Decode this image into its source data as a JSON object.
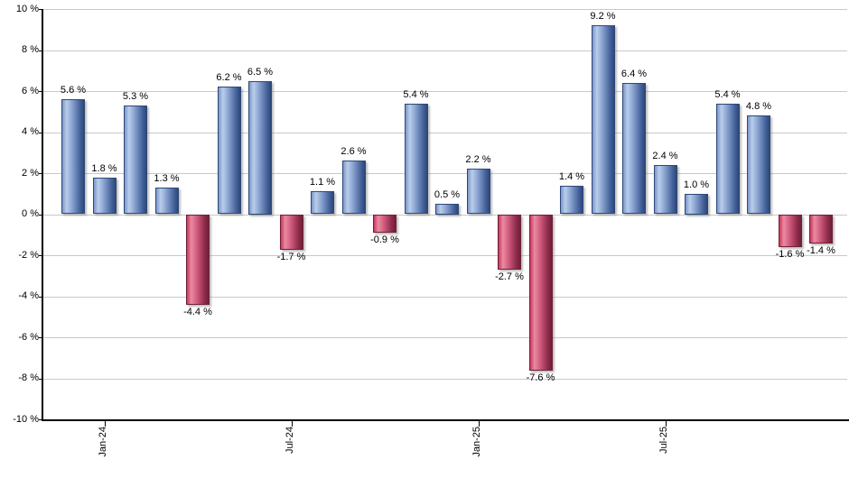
{
  "chart_data": {
    "type": "bar",
    "title": "",
    "xlabel": "",
    "ylabel": "",
    "values": [
      5.6,
      1.8,
      5.3,
      1.3,
      -4.4,
      6.2,
      6.5,
      -1.7,
      1.1,
      2.6,
      -0.9,
      5.4,
      0.5,
      2.2,
      -2.7,
      -7.6,
      1.4,
      9.2,
      6.4,
      2.4,
      1.0,
      5.4,
      4.8,
      -1.6,
      -1.4
    ],
    "value_labels": [
      "5.6 %",
      "1.8 %",
      "5.3 %",
      "1.3 %",
      "-4.4 %",
      "6.2 %",
      "6.5 %",
      "-1.7 %",
      "1.1 %",
      "2.6 %",
      "-0.9 %",
      "5.4 %",
      "0.5 %",
      "2.2 %",
      "-2.7 %",
      "-7.6 %",
      "1.4 %",
      "9.2 %",
      "6.4 %",
      "2.4 %",
      "1.0 %",
      "5.4 %",
      "4.8 %",
      "-1.6 %",
      "-1.4 %"
    ],
    "y_axis": {
      "ylim": [
        -10,
        10
      ],
      "tick_step": 2,
      "tick_labels": [
        "10 %",
        "8 %",
        "6 %",
        "4 %",
        "2 %",
        "0 %",
        "-2 %",
        "-4 %",
        "-6 %",
        "-8 %",
        "-10 %"
      ]
    },
    "x_axis": {
      "tick_labels": [
        "Jan-24",
        "Jul-24",
        "Jan-25",
        "Jul-25"
      ],
      "tick_bar_indices": [
        1,
        7,
        13,
        19
      ]
    },
    "grid": true,
    "legend": "none",
    "colors": {
      "positive_bar_gradient": [
        "#7b97c9",
        "#bacdea",
        "#8fa9d4",
        "#44619a",
        "#2d4878"
      ],
      "negative_bar_gradient": [
        "#c9375d",
        "#e98ba2",
        "#d66284",
        "#8e2a4a",
        "#6e2138"
      ],
      "gridline": "#c9c9c9",
      "axis": "#000000",
      "text": "#000000",
      "background": "#ffffff"
    }
  }
}
